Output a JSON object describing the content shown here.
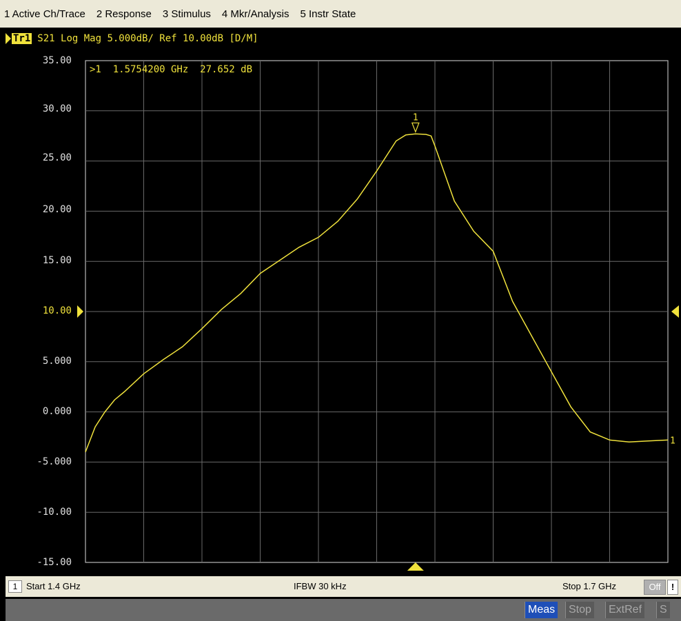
{
  "menu": [
    "1 Active Ch/Trace",
    "2 Response",
    "3 Stimulus",
    "4 Mkr/Analysis",
    "5 Instr State"
  ],
  "trace": {
    "badge": "Tr1",
    "info": "S21 Log Mag 5.000dB/ Ref 10.00dB [D/M]",
    "color": "#f0e23c"
  },
  "marker": {
    "readout": ">1  1.5754200 GHz  27.652 dB",
    "label": "1",
    "end_label": "1"
  },
  "yaxis": {
    "labels": [
      "35.00",
      "30.00",
      "25.00",
      "20.00",
      "15.00",
      "10.00",
      "5.000",
      "0.000",
      "-5.000",
      "-10.00",
      "-15.00"
    ]
  },
  "chart_data": {
    "type": "line",
    "scale_db_per_div": 5,
    "ref_level_db": 10,
    "ylim": [
      -15,
      35
    ],
    "xlim": [
      1.4,
      1.7
    ],
    "grid": true,
    "series": [
      {
        "x": [
          1.4,
          1.405,
          1.41,
          1.415,
          1.42,
          1.43,
          1.44,
          1.45,
          1.46,
          1.47,
          1.48,
          1.49,
          1.5,
          1.51,
          1.52,
          1.53,
          1.54,
          1.55,
          1.56,
          1.565,
          1.57,
          1.5754,
          1.578,
          1.58,
          1.59,
          1.6,
          1.61,
          1.62,
          1.63,
          1.64,
          1.65,
          1.66,
          1.67,
          1.68,
          1.69,
          1.7
        ],
        "values": [
          -4.0,
          -1.5,
          0.0,
          1.2,
          2.0,
          3.8,
          5.2,
          6.5,
          8.3,
          10.2,
          11.8,
          13.8,
          15.1,
          16.4,
          17.4,
          19.0,
          21.2,
          24.0,
          27.0,
          27.6,
          27.7,
          27.652,
          27.5,
          26.5,
          21.0,
          18.0,
          16.0,
          11.0,
          7.5,
          4.0,
          0.5,
          -2.0,
          -2.8,
          -3.0,
          -2.9,
          -2.8
        ]
      }
    ]
  },
  "status": {
    "channel": "1",
    "start": "Start 1.4 GHz",
    "ifbw": "IFBW 30 kHz",
    "stop": "Stop 1.7 GHz",
    "off": "Off",
    "excl": "!"
  },
  "statusbar": [
    "Meas",
    "Stop",
    "ExtRef",
    "S"
  ]
}
